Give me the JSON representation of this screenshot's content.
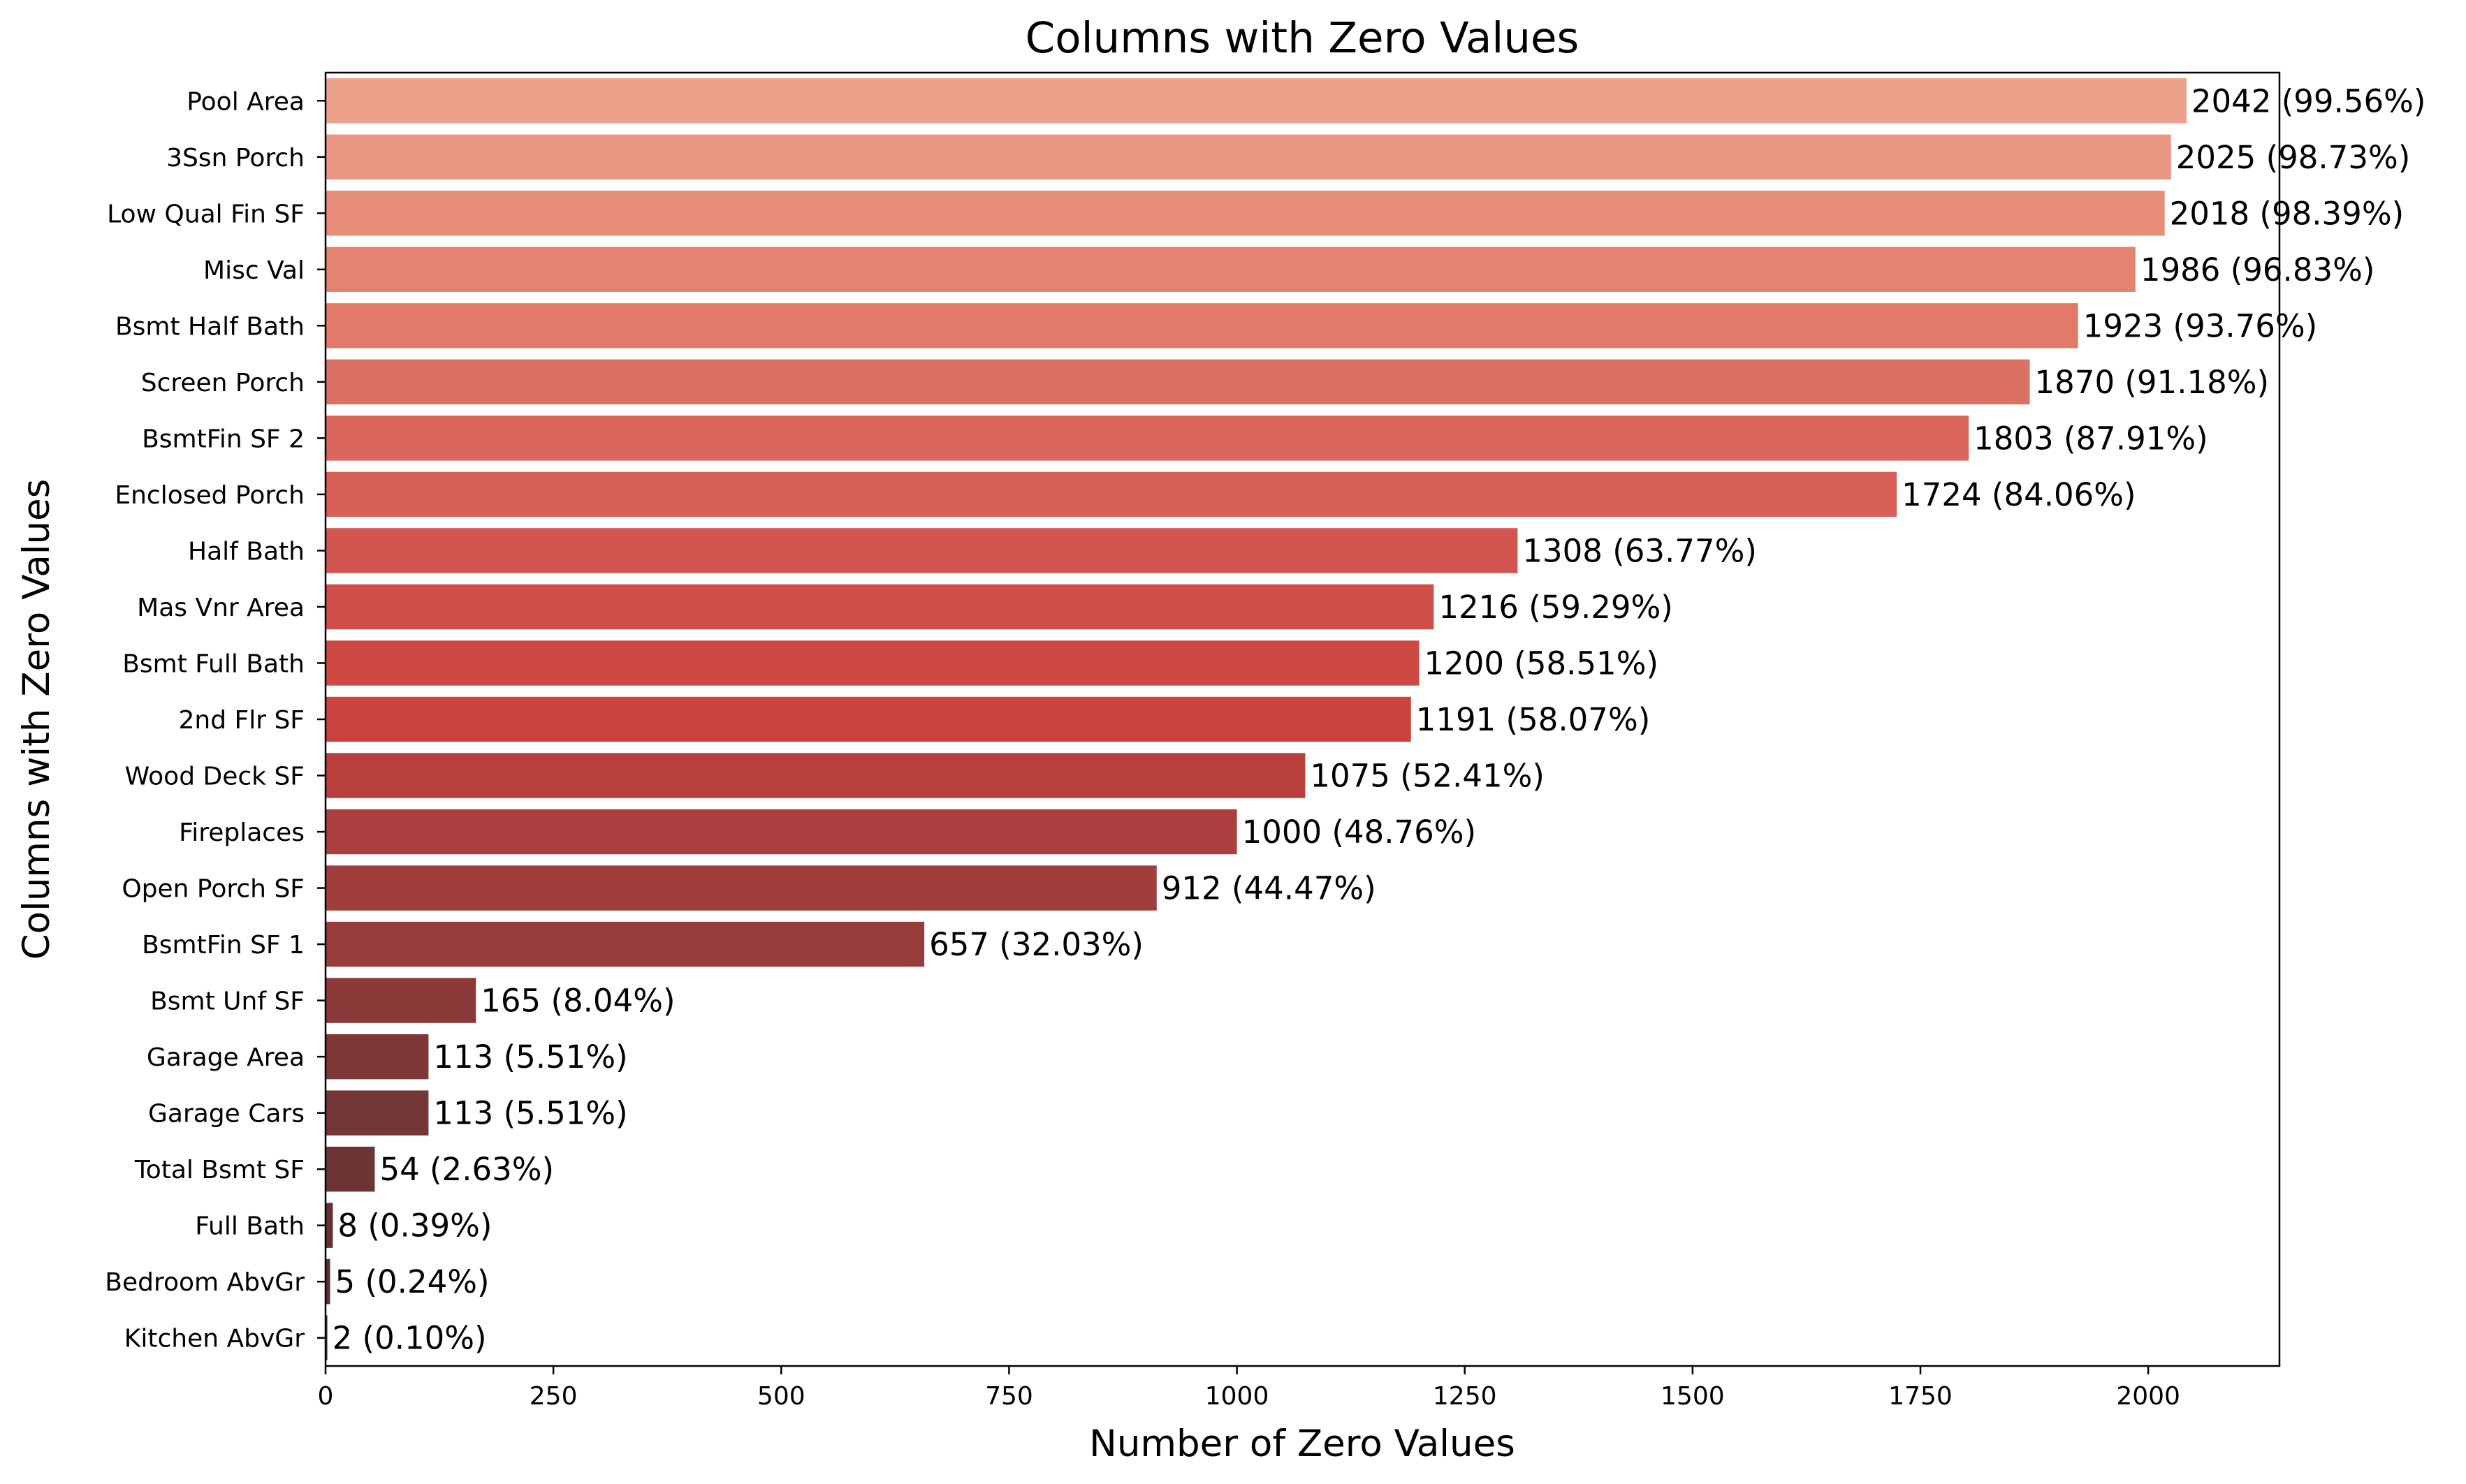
{
  "chart_data": {
    "type": "bar",
    "orientation": "horizontal",
    "title": "Columns with Zero Values",
    "xlabel": "Number of Zero Values",
    "ylabel": "Columns with Zero Values",
    "xlim": [
      0,
      2144
    ],
    "xticks": [
      0,
      250,
      500,
      750,
      1000,
      1250,
      1500,
      1750,
      2000
    ],
    "grid": false,
    "categories": [
      "Pool Area",
      "3Ssn Porch",
      "Low Qual Fin SF",
      "Misc Val",
      "Bsmt Half Bath",
      "Screen Porch",
      "BsmtFin SF 2",
      "Enclosed Porch",
      "Half Bath",
      "Mas Vnr Area",
      "Bsmt Full Bath",
      "2nd Flr SF",
      "Wood Deck SF",
      "Fireplaces",
      "Open Porch SF",
      "BsmtFin SF 1",
      "Bsmt Unf SF",
      "Garage Area",
      "Garage Cars",
      "Total Bsmt SF",
      "Full Bath",
      "Bedroom AbvGr",
      "Kitchen AbvGr"
    ],
    "values": [
      2042,
      2025,
      2018,
      1986,
      1923,
      1870,
      1803,
      1724,
      1308,
      1216,
      1200,
      1191,
      1075,
      1000,
      912,
      657,
      165,
      113,
      113,
      54,
      8,
      5,
      2
    ],
    "value_labels": [
      "2042 (99.56%)",
      "2025 (98.73%)",
      "2018 (98.39%)",
      "1986 (96.83%)",
      "1923 (93.76%)",
      "1870 (91.18%)",
      "1803 (87.91%)",
      "1724 (84.06%)",
      "1308 (63.77%)",
      "1216 (59.29%)",
      "1200 (58.51%)",
      "1191 (58.07%)",
      "1075 (52.41%)",
      "1000 (48.76%)",
      "912 (44.47%)",
      "657 (32.03%)",
      "165 (8.04%)",
      "113 (5.51%)",
      "113 (5.51%)",
      "54 (2.63%)",
      "8 (0.39%)",
      "5 (0.24%)",
      "2 (0.10%)"
    ],
    "colors": [
      "#ECA18A",
      "#E99683",
      "#E68C78",
      "#E4836F",
      "#E17A69",
      "#DD7064",
      "#DB665C",
      "#D75F56",
      "#D3554F",
      "#D04E48",
      "#CE4944",
      "#C9443E",
      "#B93F3D",
      "#AB3F3F",
      "#A03D3D",
      "#963D3B",
      "#8B3838",
      "#7E3737",
      "#743737",
      "#6C3434",
      "#623232",
      "#5A3030",
      "#513131"
    ]
  }
}
